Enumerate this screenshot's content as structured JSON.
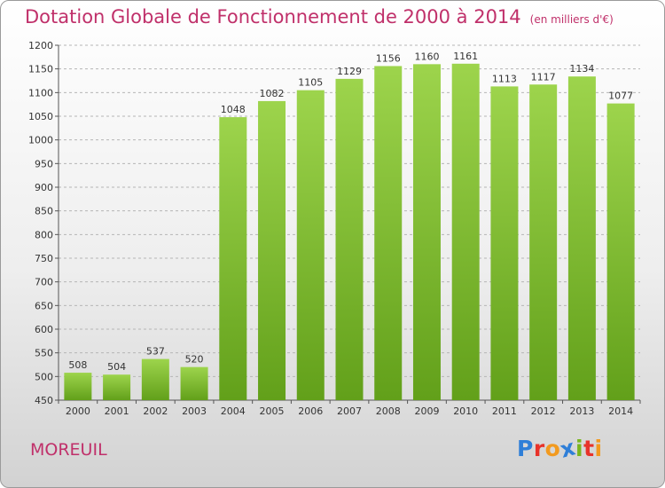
{
  "title": {
    "main": "Dotation Globale de Fonctionnement de 2000 à 2014",
    "unit": "(en milliers d'€)"
  },
  "commune": "MOREUIL",
  "logo": {
    "text": "Proxiti",
    "colors": [
      "#2f7fd8",
      "#e8332a",
      "#f29a1f",
      "#2f7fd8",
      "#7ab51d",
      "#e8332a",
      "#f29a1f"
    ]
  },
  "colors": {
    "title": "#c0306a",
    "bar_top": "#9dd44c",
    "bar_bottom": "#62a01a",
    "grid": "#b5b5b5",
    "axis": "#555555"
  },
  "chart_data": {
    "type": "bar",
    "categories": [
      "2000",
      "2001",
      "2002",
      "2003",
      "2004",
      "2005",
      "2006",
      "2007",
      "2008",
      "2009",
      "2010",
      "2011",
      "2012",
      "2013",
      "2014"
    ],
    "values": [
      508,
      504,
      537,
      520,
      1048,
      1082,
      1105,
      1129,
      1156,
      1160,
      1161,
      1113,
      1117,
      1134,
      1077
    ],
    "yticks": [
      450,
      500,
      550,
      600,
      650,
      700,
      750,
      800,
      850,
      900,
      950,
      1000,
      1050,
      1100,
      1150,
      1200
    ],
    "ylim": [
      450,
      1200
    ],
    "grid": true,
    "title": "Dotation Globale de Fonctionnement de 2000 à 2014",
    "xlabel": "",
    "ylabel": ""
  }
}
